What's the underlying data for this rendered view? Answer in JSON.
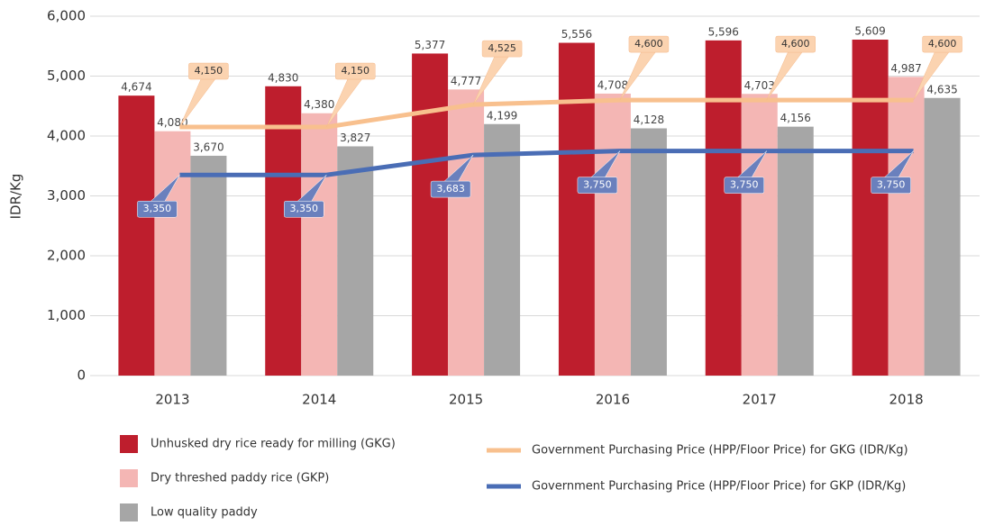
{
  "chart_data": {
    "type": "bar",
    "y_label": "IDR/Kg",
    "categories": [
      "2013",
      "2014",
      "2015",
      "2016",
      "2017",
      "2018"
    ],
    "ylim": [
      0,
      6000
    ],
    "yticks": [
      0,
      {
        "value": 1000,
        "label": "1,000"
      },
      {
        "value": 2000,
        "label": "2,000"
      },
      {
        "value": 3000,
        "label": "3,000"
      },
      {
        "value": 4000,
        "label": "4,000"
      },
      {
        "value": 5000,
        "label": "5,000"
      },
      {
        "value": 6000,
        "label": "6,000"
      }
    ],
    "grid": true,
    "series": [
      {
        "name": "Unhusked dry rice ready for milling (GKG)",
        "type": "bar",
        "color": "#be1e2d",
        "values": [
          4674,
          4830,
          5377,
          5556,
          5596,
          5609
        ],
        "value_labels": [
          "4,674",
          "4,830",
          "5,377",
          "5,556",
          "5,596",
          "5,609"
        ]
      },
      {
        "name": "Dry threshed paddy rice (GKP)",
        "type": "bar",
        "color": "#f4b6b4",
        "values": [
          4080,
          4380,
          4777,
          4708,
          4703,
          4987
        ],
        "value_labels": [
          "4,080",
          "4,380",
          "4,777",
          "4,708",
          "4,703",
          "4,987"
        ]
      },
      {
        "name": "Low quality paddy",
        "type": "bar",
        "color": "#a6a6a6",
        "values": [
          3670,
          3827,
          4199,
          4128,
          4156,
          4635
        ],
        "value_labels": [
          "3,670",
          "3,827",
          "4,199",
          "4,128",
          "4,156",
          "4,635"
        ]
      },
      {
        "name": "Government Purchasing Price (HPP/Floor Price) for GKG (IDR/Kg)",
        "type": "line",
        "color": "#f8c08e",
        "label_color": "#fbd3b0",
        "values": [
          4150,
          4150,
          4525,
          4600,
          4600,
          4600
        ],
        "value_labels": [
          "4,150",
          "4,150",
          "4,525",
          "4,600",
          "4,600",
          "4,600"
        ]
      },
      {
        "name": "Government Purchasing Price (HPP/Floor Price) for GKP (IDR/Kg)",
        "type": "line",
        "color": "#4a6db5",
        "label_color": "#6a80bd",
        "values": [
          3350,
          3350,
          3683,
          3750,
          3750,
          3750
        ],
        "value_labels": [
          "3,350",
          "3,350",
          "3,683",
          "3,750",
          "3,750",
          "3,750"
        ]
      }
    ]
  }
}
